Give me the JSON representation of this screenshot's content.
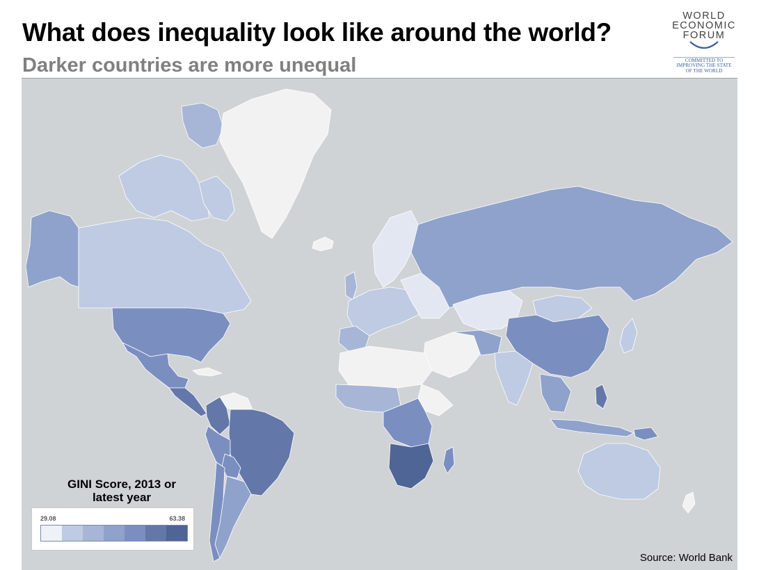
{
  "title": "What does inequality look like around the world?",
  "subtitle": "Darker countries are more unequal",
  "logo": {
    "line1": "WORLD",
    "line2": "ECONOMIC",
    "line3": "FORUM",
    "tagline1": "COMMITTED TO",
    "tagline2": "IMPROVING THE STATE",
    "tagline3": "OF THE WORLD"
  },
  "legend": {
    "title_line1": "GINI Score, 2013 or",
    "title_line2": "latest year",
    "min_label": "29.08",
    "max_label": "63.38",
    "colors": [
      "#eef1f8",
      "#bfcbe2",
      "#a7b6d6",
      "#8fa2cb",
      "#7a8fc0",
      "#6378a8",
      "#4f6596"
    ]
  },
  "source": "Source: World Bank",
  "colors": {
    "ocean": "#cfd3d6",
    "no_data": "#f2f2f2",
    "border": "#ffffff"
  }
}
